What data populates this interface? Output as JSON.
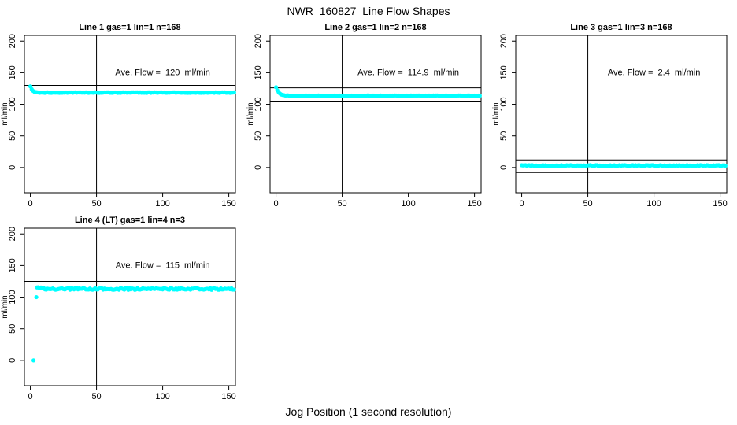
{
  "page": {
    "title": "NWR_160827  Line Flow Shapes",
    "xlabel": "Jog Position (1 second resolution)",
    "background_color": "#ffffff",
    "point_color": "#00ffff",
    "line_color": "#000000"
  },
  "chart_data": [
    {
      "type": "scatter",
      "title": "Line 1 gas=1 lin=1 n=168",
      "line_number": 1,
      "gas": 1,
      "lin": 1,
      "n": 168,
      "annotation": "Ave. Flow =  120  ml/min",
      "ave_flow_ml_min": 120,
      "ylabel": "ml/min",
      "x_ticks": [
        0,
        50,
        100,
        150
      ],
      "y_ticks": [
        0,
        50,
        100,
        150,
        200
      ],
      "xlim": [
        -4.5,
        155
      ],
      "ylim": [
        -40,
        209
      ],
      "vline_x": 50,
      "hlines": [
        130,
        110
      ],
      "point_color": "#00ffff",
      "annotation_pos": [
        100,
        146
      ],
      "series": {
        "name": "line-1-flow",
        "x_start": 0,
        "x_end": 154,
        "x_step": 1,
        "start_value": 128,
        "settle_value": 118.5,
        "decay_tau": 1.6,
        "noise": 0.5,
        "outliers": []
      }
    },
    {
      "type": "scatter",
      "title": "Line 2 gas=1 lin=2 n=168",
      "line_number": 2,
      "gas": 1,
      "lin": 2,
      "n": 168,
      "annotation": "Ave. Flow =  114.9  ml/min",
      "ave_flow_ml_min": 114.9,
      "ylabel": "ml/min",
      "x_ticks": [
        0,
        50,
        100,
        150
      ],
      "y_ticks": [
        0,
        50,
        100,
        150,
        200
      ],
      "xlim": [
        -4.5,
        155
      ],
      "ylim": [
        -40,
        209
      ],
      "vline_x": 50,
      "hlines": [
        126,
        105
      ],
      "point_color": "#00ffff",
      "annotation_pos": [
        100,
        146
      ],
      "series": {
        "name": "line-2-flow",
        "x_start": 0,
        "x_end": 154,
        "x_step": 1,
        "start_value": 127,
        "settle_value": 113.5,
        "decay_tau": 2.2,
        "noise": 0.5,
        "outliers": []
      }
    },
    {
      "type": "scatter",
      "title": "Line 3 gas=1 lin=3 n=168",
      "line_number": 3,
      "gas": 1,
      "lin": 3,
      "n": 168,
      "annotation": "Ave. Flow =  2.4  ml/min",
      "ave_flow_ml_min": 2.4,
      "ylabel": "ml/min",
      "x_ticks": [
        0,
        50,
        100,
        150
      ],
      "y_ticks": [
        0,
        50,
        100,
        150,
        200
      ],
      "xlim": [
        -4.5,
        155
      ],
      "ylim": [
        -40,
        209
      ],
      "vline_x": 50,
      "hlines": [
        12,
        -8
      ],
      "point_color": "#00ffff",
      "annotation_pos": [
        100,
        146
      ],
      "series": {
        "name": "line-3-flow",
        "x_start": 0,
        "x_end": 154,
        "x_step": 1,
        "start_value": 3,
        "settle_value": 3,
        "decay_tau": 1,
        "noise": 0.7,
        "outliers": []
      }
    },
    {
      "type": "scatter",
      "title": "Line 4 (LT) gas=1 lin=4 n=3",
      "line_number": 4,
      "gas": 1,
      "lin": 4,
      "n": 3,
      "annotation": "Ave. Flow =  115  ml/min",
      "ave_flow_ml_min": 115,
      "ylabel": "ml/min",
      "x_ticks": [
        0,
        50,
        100,
        150
      ],
      "y_ticks": [
        0,
        50,
        100,
        150,
        200
      ],
      "xlim": [
        -4.5,
        155
      ],
      "ylim": [
        -40,
        209
      ],
      "vline_x": 50,
      "hlines": [
        125,
        105
      ],
      "point_color": "#00ffff",
      "annotation_pos": [
        100,
        146
      ],
      "series": {
        "name": "line-4-flow",
        "x_start": 5,
        "x_end": 154,
        "x_step": 1,
        "start_value": 116,
        "settle_value": 113,
        "decay_tau": 2.0,
        "noise": 1.5,
        "outliers": [
          [
            2.4,
            0
          ],
          [
            4.5,
            100
          ]
        ]
      }
    }
  ]
}
